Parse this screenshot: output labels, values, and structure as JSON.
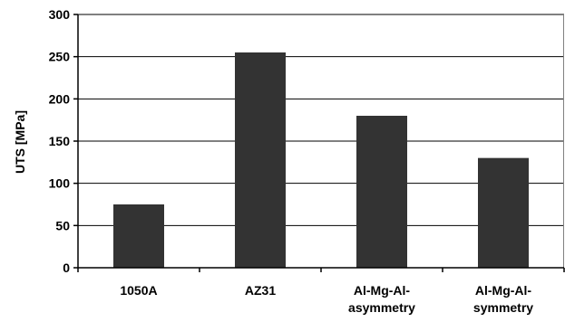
{
  "chart_data": {
    "type": "bar",
    "categories": [
      "1050A",
      "AZ31",
      "Al-Mg-Al-asymmetry",
      "Al-Mg-Al-symmetry"
    ],
    "category_label_lines": [
      [
        "1050A"
      ],
      [
        "AZ31"
      ],
      [
        "Al-Mg-Al-",
        "asymmetry"
      ],
      [
        "Al-Mg-Al-",
        "symmetry"
      ]
    ],
    "values": [
      75,
      255,
      180,
      130
    ],
    "title": "",
    "xlabel": "",
    "ylabel": "UTS [MPa]",
    "ylim": [
      0,
      300
    ],
    "yticks": [
      0,
      50,
      100,
      150,
      200,
      250,
      300
    ],
    "grid": true,
    "legend": "none",
    "colors": {
      "bar": "#333333",
      "grid": "#000000",
      "axis": "#000000",
      "frame": "#808080"
    }
  }
}
